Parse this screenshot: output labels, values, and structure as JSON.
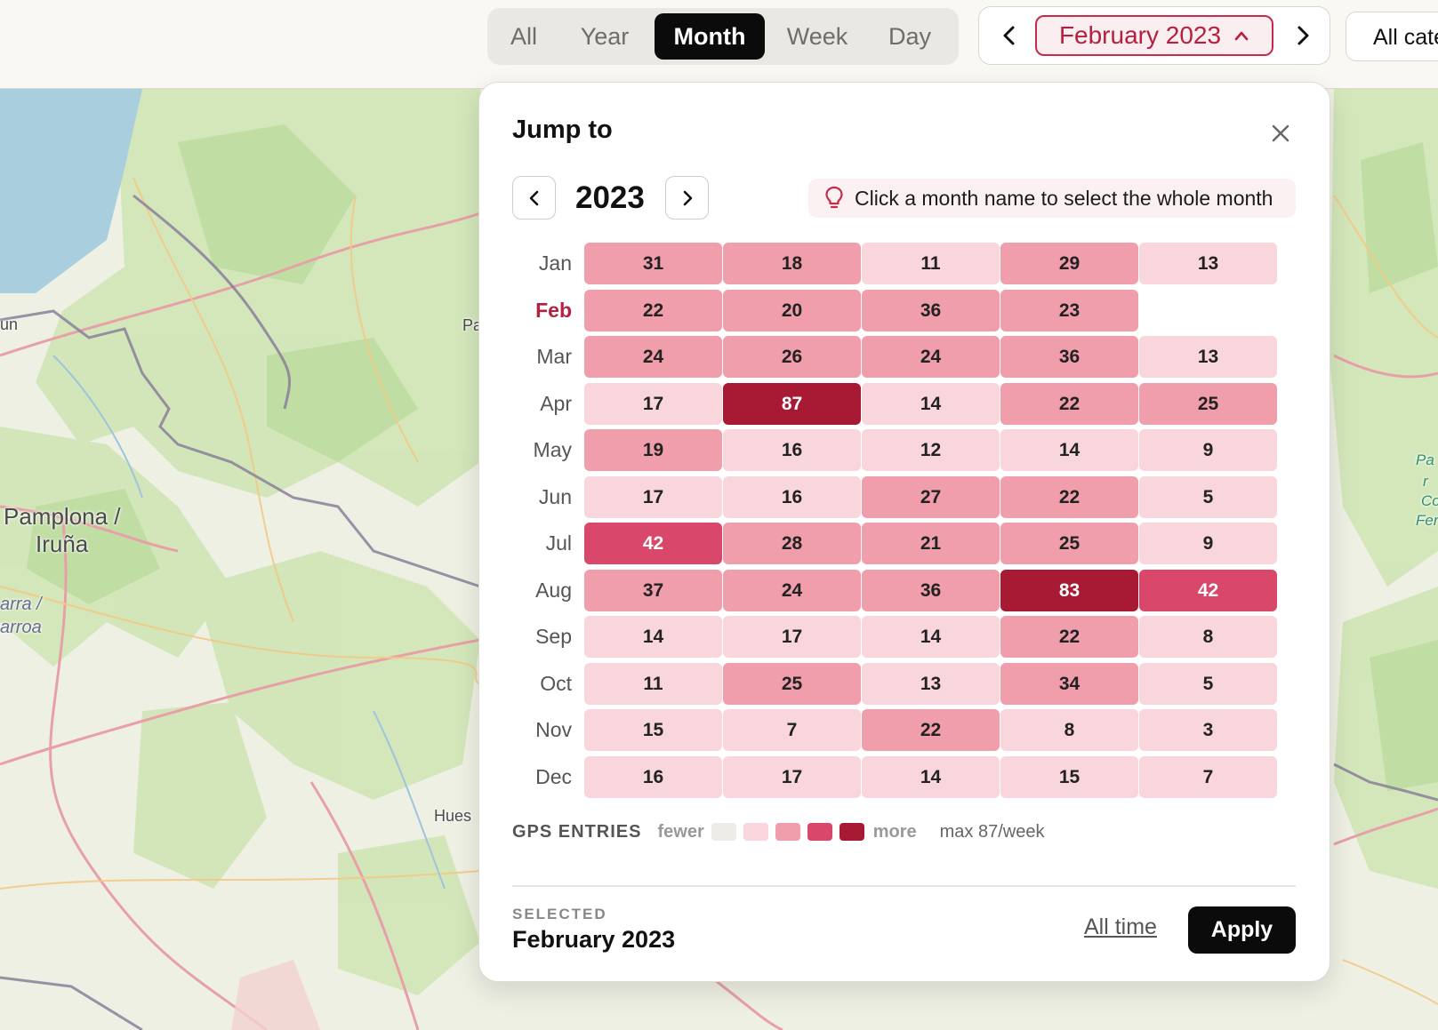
{
  "view_tabs": [
    {
      "label": "All",
      "active": false
    },
    {
      "label": "Year",
      "active": false
    },
    {
      "label": "Month",
      "active": true
    },
    {
      "label": "Week",
      "active": false
    },
    {
      "label": "Day",
      "active": false
    }
  ],
  "date_nav": {
    "current": "February 2023",
    "prev_icon": "chevron-left-icon",
    "next_icon": "chevron-right-icon",
    "toggle_icon": "chevron-up-icon"
  },
  "categories_button": "All cate",
  "map_labels": {
    "pamplona": "Pamplona /",
    "iruna": "Iruña",
    "navarra": "arra /",
    "nafarroa": "arroa",
    "pa": "Pa",
    "huesca": "Hues",
    "edge_west": "un",
    "park1": "Pa",
    "park2": "r",
    "park3": "Co",
    "park4": "Fer"
  },
  "popup": {
    "title": "Jump to",
    "year": "2023",
    "hint": "Click a month name to select the whole month",
    "selected_month": "Feb"
  },
  "heatmap": {
    "months": [
      "Jan",
      "Feb",
      "Mar",
      "Apr",
      "May",
      "Jun",
      "Jul",
      "Aug",
      "Sep",
      "Oct",
      "Nov",
      "Dec"
    ],
    "weeks": [
      [
        31,
        18,
        11,
        29,
        13
      ],
      [
        22,
        20,
        36,
        23
      ],
      [
        24,
        26,
        24,
        36,
        13
      ],
      [
        17,
        87,
        14,
        22,
        25
      ],
      [
        19,
        16,
        12,
        14,
        9
      ],
      [
        17,
        16,
        27,
        22,
        5
      ],
      [
        42,
        28,
        21,
        25,
        9
      ],
      [
        37,
        24,
        36,
        83,
        42
      ],
      [
        14,
        17,
        14,
        22,
        8
      ],
      [
        11,
        25,
        13,
        34,
        5
      ],
      [
        15,
        7,
        22,
        8,
        3
      ],
      [
        16,
        17,
        14,
        15,
        7
      ]
    ],
    "levels": [
      [
        2,
        2,
        1,
        2,
        1
      ],
      [
        2,
        2,
        2,
        2
      ],
      [
        2,
        2,
        2,
        2,
        1
      ],
      [
        1,
        4,
        1,
        2,
        2
      ],
      [
        2,
        1,
        1,
        1,
        1
      ],
      [
        1,
        1,
        2,
        2,
        1
      ],
      [
        3,
        2,
        2,
        2,
        1
      ],
      [
        2,
        2,
        2,
        4,
        3
      ],
      [
        1,
        1,
        1,
        2,
        1
      ],
      [
        1,
        2,
        1,
        2,
        1
      ],
      [
        1,
        1,
        2,
        1,
        1
      ],
      [
        1,
        1,
        1,
        1,
        1
      ]
    ]
  },
  "legend": {
    "title": "GPS ENTRIES",
    "fewer": "fewer",
    "more": "more",
    "max": "max 87/week",
    "colors": [
      "#ecebe6",
      "#f8d6dc",
      "#f09eab",
      "#d9476a",
      "#a81a33"
    ]
  },
  "footer": {
    "caption": "SELECTED",
    "value": "February 2023",
    "all_time": "All time",
    "apply": "Apply"
  }
}
